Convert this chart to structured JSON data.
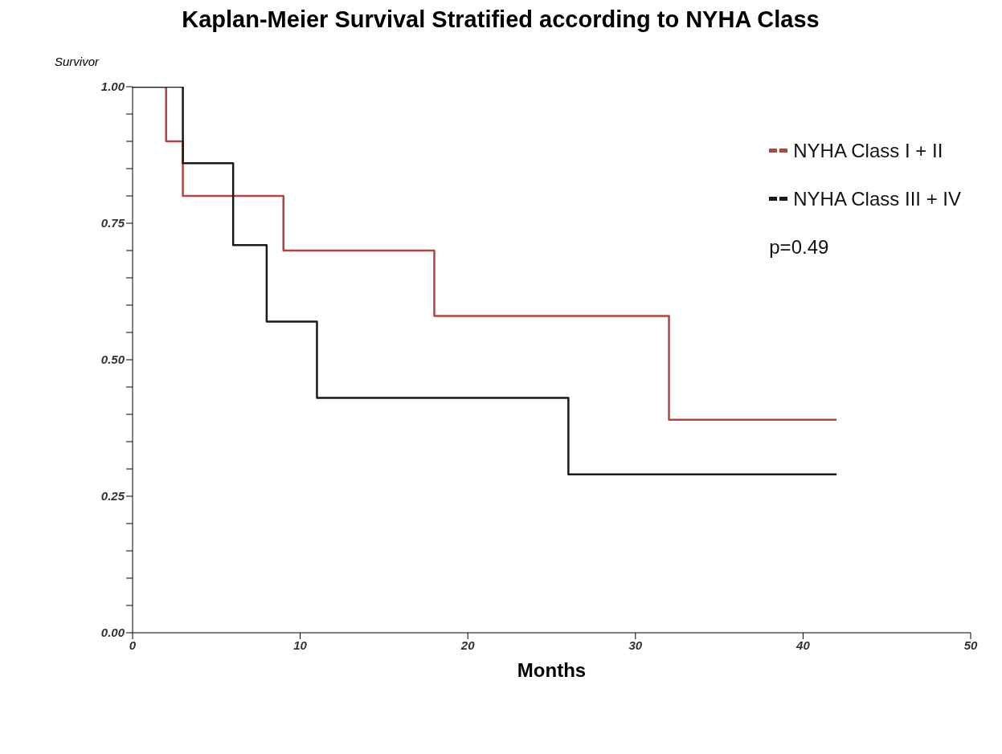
{
  "chart_data": {
    "type": "step",
    "title": "Kaplan-Meier Survival Stratified according to NYHA Class",
    "xlabel": "Months",
    "ylabel": "Survivor",
    "series": [
      {
        "name": "NYHA Class I + II",
        "color": "#b5433f",
        "x": [
          0,
          2,
          3,
          9,
          18,
          32,
          42
        ],
        "values": [
          1,
          0.9,
          0.8,
          0.7,
          0.58,
          0.39,
          0.39
        ]
      },
      {
        "name": "NYHA Class III + IV",
        "color": "#1a1a1a",
        "x": [
          0,
          3,
          6,
          8,
          11,
          26,
          42
        ],
        "values": [
          1,
          0.86,
          0.71,
          0.57,
          0.43,
          0.29,
          0.29
        ]
      }
    ],
    "xlim": [
      0,
      50
    ],
    "xticks": [
      0,
      10,
      20,
      30,
      40,
      50
    ],
    "ylim": [
      0,
      1
    ],
    "yticks": [
      {
        "value": 0,
        "label": "0.00"
      },
      {
        "value": 0.05,
        "label": null
      },
      {
        "value": 0.1,
        "label": null
      },
      {
        "value": 0.15,
        "label": null
      },
      {
        "value": 0.2,
        "label": null
      },
      {
        "value": 0.25,
        "label": "0.25"
      },
      {
        "value": 0.3,
        "label": null
      },
      {
        "value": 0.35,
        "label": null
      },
      {
        "value": 0.4,
        "label": null
      },
      {
        "value": 0.45,
        "label": null
      },
      {
        "value": 0.5,
        "label": "0.50"
      },
      {
        "value": 0.55,
        "label": null
      },
      {
        "value": 0.6,
        "label": null
      },
      {
        "value": 0.65,
        "label": null
      },
      {
        "value": 0.7,
        "label": null
      },
      {
        "value": 0.75,
        "label": "0.75"
      },
      {
        "value": 0.8,
        "label": null
      },
      {
        "value": 0.85,
        "label": null
      },
      {
        "value": 0.9,
        "label": null
      },
      {
        "value": 0.95,
        "label": null
      },
      {
        "value": 1,
        "label": "1.00"
      }
    ],
    "grid": false,
    "legend": "top right",
    "line_style": "solid",
    "annotations": [
      "p=0.49"
    ]
  }
}
